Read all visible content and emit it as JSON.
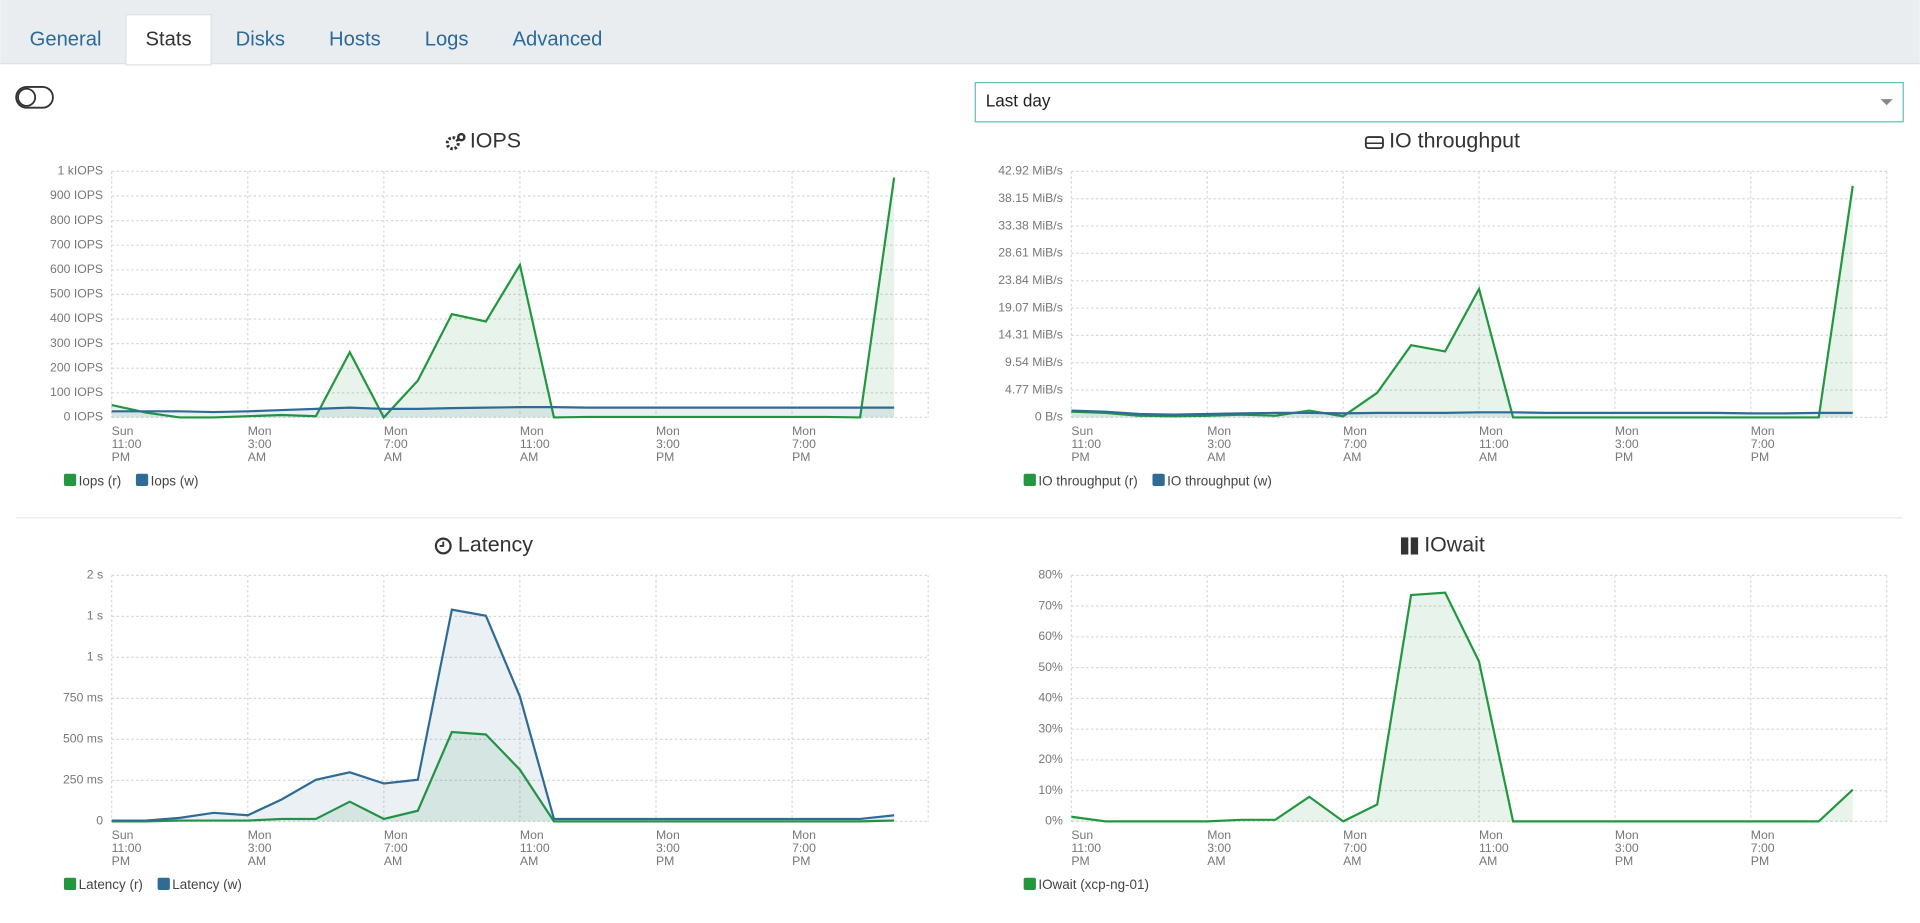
{
  "tabs": [
    {
      "label": "General"
    },
    {
      "label": "Stats",
      "active": true
    },
    {
      "label": "Disks"
    },
    {
      "label": "Hosts"
    },
    {
      "label": "Logs"
    },
    {
      "label": "Advanced"
    }
  ],
  "period_select": {
    "value": "Last day"
  },
  "chart_data": [
    {
      "type": "area",
      "title": "IOPS",
      "x": [
        0,
        1,
        2,
        3,
        4,
        5,
        6,
        7,
        8,
        9,
        10,
        11,
        12,
        13,
        14,
        15,
        16,
        17,
        18,
        19,
        20,
        21,
        22,
        23
      ],
      "xlim": [
        0,
        24
      ],
      "xticks": [
        {
          "value": 0,
          "label": "Sun 11:00 PM"
        },
        {
          "value": 4,
          "label": "Mon 3:00 AM"
        },
        {
          "value": 8,
          "label": "Mon 7:00 AM"
        },
        {
          "value": 12,
          "label": "Mon 11:00 AM"
        },
        {
          "value": 16,
          "label": "Mon 3:00 PM"
        },
        {
          "value": 20,
          "label": "Mon 7:00 PM"
        }
      ],
      "ylim": [
        0,
        1000
      ],
      "yticks": [
        {
          "value": 0,
          "label": "0 IOPS"
        },
        {
          "value": 100,
          "label": "100 IOPS"
        },
        {
          "value": 200,
          "label": "200 IOPS"
        },
        {
          "value": 300,
          "label": "300 IOPS"
        },
        {
          "value": 400,
          "label": "400 IOPS"
        },
        {
          "value": 500,
          "label": "500 IOPS"
        },
        {
          "value": 600,
          "label": "600 IOPS"
        },
        {
          "value": 700,
          "label": "700 IOPS"
        },
        {
          "value": 800,
          "label": "800 IOPS"
        },
        {
          "value": 900,
          "label": "900 IOPS"
        },
        {
          "value": 1000,
          "label": "1 kIOPS"
        }
      ],
      "grid": true,
      "series": [
        {
          "name": "Iops (r)",
          "color": "#22973f",
          "values": [
            50,
            20,
            0,
            0,
            5,
            10,
            5,
            265,
            0,
            150,
            420,
            390,
            620,
            0,
            2,
            2,
            2,
            2,
            2,
            2,
            2,
            2,
            0,
            975
          ]
        },
        {
          "name": "Iops (w)",
          "color": "#2f6b95",
          "values": [
            25,
            25,
            25,
            22,
            25,
            30,
            35,
            40,
            35,
            35,
            38,
            40,
            42,
            42,
            40,
            40,
            40,
            40,
            40,
            40,
            40,
            40,
            40,
            40
          ]
        }
      ]
    },
    {
      "type": "area",
      "title": "IO throughput",
      "x": [
        0,
        1,
        2,
        3,
        4,
        5,
        6,
        7,
        8,
        9,
        10,
        11,
        12,
        13,
        14,
        15,
        16,
        17,
        18,
        19,
        20,
        21,
        22,
        23
      ],
      "xlim": [
        0,
        24
      ],
      "xticks": [
        {
          "value": 0,
          "label": "Sun 11:00 PM"
        },
        {
          "value": 4,
          "label": "Mon 3:00 AM"
        },
        {
          "value": 8,
          "label": "Mon 7:00 AM"
        },
        {
          "value": 12,
          "label": "Mon 11:00 AM"
        },
        {
          "value": 16,
          "label": "Mon 3:00 PM"
        },
        {
          "value": 20,
          "label": "Mon 7:00 PM"
        }
      ],
      "ylim": [
        0,
        42.92
      ],
      "yticks": [
        {
          "value": 0,
          "label": "0 B/s"
        },
        {
          "value": 4.77,
          "label": "4.77 MiB/s"
        },
        {
          "value": 9.54,
          "label": "9.54 MiB/s"
        },
        {
          "value": 14.31,
          "label": "14.31 MiB/s"
        },
        {
          "value": 19.07,
          "label": "19.07 MiB/s"
        },
        {
          "value": 23.84,
          "label": "23.84 MiB/s"
        },
        {
          "value": 28.61,
          "label": "28.61 MiB/s"
        },
        {
          "value": 33.38,
          "label": "33.38 MiB/s"
        },
        {
          "value": 38.15,
          "label": "38.15 MiB/s"
        },
        {
          "value": 42.92,
          "label": "42.92 MiB/s"
        }
      ],
      "grid": true,
      "series": [
        {
          "name": "IO throughput (r)",
          "color": "#22973f",
          "values": [
            1.0,
            0.8,
            0.3,
            0.2,
            0.3,
            0.5,
            0.3,
            1.2,
            0.2,
            4.3,
            12.6,
            11.5,
            22.4,
            0,
            0,
            0,
            0,
            0,
            0,
            0,
            0,
            0,
            0,
            40.4
          ]
        },
        {
          "name": "IO throughput (w)",
          "color": "#2f6b95",
          "values": [
            1.2,
            1.0,
            0.6,
            0.5,
            0.6,
            0.7,
            0.8,
            0.8,
            0.7,
            0.8,
            0.8,
            0.8,
            0.9,
            0.9,
            0.8,
            0.8,
            0.8,
            0.8,
            0.8,
            0.8,
            0.7,
            0.7,
            0.8,
            0.8
          ]
        }
      ]
    },
    {
      "type": "area",
      "title": "Latency",
      "x": [
        0,
        1,
        2,
        3,
        4,
        5,
        6,
        7,
        8,
        9,
        10,
        11,
        12,
        13,
        14,
        15,
        16,
        17,
        18,
        19,
        20,
        21,
        22,
        23
      ],
      "xlim": [
        0,
        24
      ],
      "xticks": [
        {
          "value": 0,
          "label": "Sun 11:00 PM"
        },
        {
          "value": 4,
          "label": "Mon 3:00 AM"
        },
        {
          "value": 8,
          "label": "Mon 7:00 AM"
        },
        {
          "value": 12,
          "label": "Mon 11:00 AM"
        },
        {
          "value": 16,
          "label": "Mon 3:00 PM"
        },
        {
          "value": 20,
          "label": "Mon 7:00 PM"
        }
      ],
      "ylim": [
        0,
        1500
      ],
      "yticks": [
        0,
        {
          "value": 250,
          "label": "250 ms"
        },
        {
          "value": 500,
          "label": "500 ms"
        },
        {
          "value": 750,
          "label": "750 ms"
        },
        {
          "value": 1000,
          "label": "1 s"
        },
        {
          "value": 1250,
          "label": "1 s"
        },
        {
          "value": 1500,
          "label": "2 s"
        }
      ],
      "grid": true,
      "series": [
        {
          "name": "Latency (r)",
          "color": "#22973f",
          "values": [
            0,
            0,
            5,
            5,
            5,
            15,
            15,
            120,
            15,
            65,
            545,
            530,
            315,
            0,
            0,
            0,
            0,
            0,
            0,
            0,
            0,
            0,
            0,
            5
          ]
        },
        {
          "name": "Latency (w)",
          "color": "#2f6b95",
          "values": [
            5,
            5,
            22,
            52,
            37,
            134,
            254,
            299,
            231,
            254,
            1291,
            1254,
            761,
            15,
            15,
            15,
            15,
            15,
            15,
            15,
            15,
            15,
            15,
            37
          ]
        }
      ]
    },
    {
      "type": "area",
      "title": "IOwait",
      "x": [
        0,
        1,
        2,
        3,
        4,
        5,
        6,
        7,
        8,
        9,
        10,
        11,
        12,
        13,
        14,
        15,
        16,
        17,
        18,
        19,
        20,
        21,
        22,
        23
      ],
      "xlim": [
        0,
        24
      ],
      "xticks": [
        {
          "value": 0,
          "label": "Sun 11:00 PM"
        },
        {
          "value": 4,
          "label": "Mon 3:00 AM"
        },
        {
          "value": 8,
          "label": "Mon 7:00 AM"
        },
        {
          "value": 12,
          "label": "Mon 11:00 AM"
        },
        {
          "value": 16,
          "label": "Mon 3:00 PM"
        },
        {
          "value": 20,
          "label": "Mon 7:00 PM"
        }
      ],
      "ylim": [
        0,
        80
      ],
      "yticks": [
        {
          "value": 0,
          "label": "0%"
        },
        {
          "value": 10,
          "label": "10%"
        },
        {
          "value": 20,
          "label": "20%"
        },
        {
          "value": 30,
          "label": "30%"
        },
        {
          "value": 40,
          "label": "40%"
        },
        {
          "value": 50,
          "label": "50%"
        },
        {
          "value": 60,
          "label": "60%"
        },
        {
          "value": 70,
          "label": "70%"
        },
        {
          "value": 80,
          "label": "80%"
        }
      ],
      "grid": true,
      "series": [
        {
          "name": "IOwait (xcp-ng-01)",
          "color": "#22973f",
          "values": [
            1.5,
            0,
            0,
            0,
            0,
            0.5,
            0.5,
            8,
            0,
            5.5,
            73.6,
            74.4,
            52,
            0,
            0,
            0,
            0,
            0,
            0,
            0,
            0,
            0,
            0,
            10.3
          ]
        }
      ]
    }
  ]
}
